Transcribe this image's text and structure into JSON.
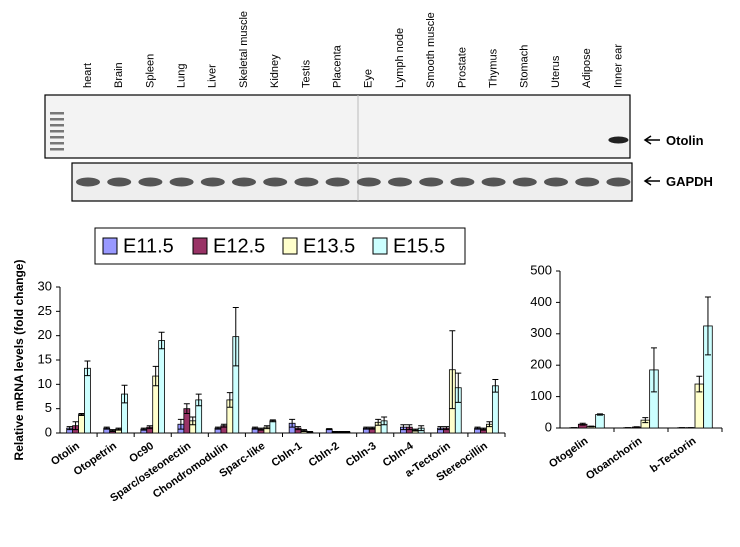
{
  "gel": {
    "lanes": [
      "heart",
      "Brain",
      "Spleen",
      "Lung",
      "Liver",
      "Skeletal muscle",
      "Kidney",
      "Testis",
      "Placenta",
      "Eye",
      "Lymph node",
      "Smooth muscle",
      "Prostate",
      "Thymus",
      "Stomach",
      "Uterus",
      "Adipose",
      "Inner ear"
    ],
    "bands": [
      "Otolin",
      "GAPDH"
    ]
  },
  "chart_data": [
    {
      "type": "bar",
      "y_label": "Relative mRNA levels (fold change)",
      "categories": [
        "Otolin",
        "Otopetrin",
        "Oc90",
        "Sparc/osteonectin",
        "Chondromodulin",
        "Sparc-like",
        "Cbln-1",
        "Cbln-2",
        "Cbln-3",
        "Cbln-4",
        "a-Tectorin",
        "Stereocillin"
      ],
      "series": [
        {
          "name": "E11.5",
          "color": "#9999ff",
          "values": [
            1,
            1,
            0.8,
            1.8,
            1,
            1,
            2,
            0.8,
            1,
            1.2,
            1,
            1
          ],
          "errors": [
            0.3,
            0.2,
            0.2,
            1,
            0.2,
            0.2,
            0.8,
            0.1,
            0.2,
            0.5,
            0.3,
            0.2
          ]
        },
        {
          "name": "E12.5",
          "color": "#993366",
          "values": [
            1.5,
            0.5,
            1.2,
            5,
            1.5,
            0.8,
            1,
            0.2,
            1,
            1.2,
            1,
            0.8
          ],
          "errors": [
            0.8,
            0.2,
            0.3,
            1,
            0.3,
            0.2,
            0.3,
            0.1,
            0.2,
            0.5,
            0.3,
            0.2
          ]
        },
        {
          "name": "E13.5",
          "color": "#ffffcc",
          "values": [
            3.8,
            0.8,
            11.7,
            2.5,
            6.8,
            1.2,
            0.5,
            0.2,
            2.2,
            0.6,
            13,
            1.8
          ],
          "errors": [
            0.2,
            0.2,
            2,
            0.8,
            1.5,
            0.3,
            0.2,
            0.1,
            0.6,
            0.2,
            8,
            0.5
          ]
        },
        {
          "name": "E15.5",
          "color": "#ccffff",
          "values": [
            13.3,
            8,
            19,
            6.8,
            19.8,
            2.5,
            0.2,
            0.2,
            2.5,
            1,
            9.3,
            9.7
          ],
          "errors": [
            1.5,
            1.8,
            1.7,
            1.2,
            6,
            0.2,
            0.1,
            0.1,
            0.8,
            0.5,
            3,
            1.3
          ]
        }
      ],
      "ylim": [
        0,
        30
      ],
      "yticks": [
        0,
        5,
        10,
        15,
        20,
        25,
        30
      ],
      "legend": "top"
    },
    {
      "type": "bar",
      "categories": [
        "Otogelin",
        "Otoanchorin",
        "b-Tectorin"
      ],
      "series": [
        {
          "color": "#9999ff",
          "values": [
            1,
            1,
            1
          ],
          "errors": [
            0,
            0,
            0
          ]
        },
        {
          "color": "#993366",
          "values": [
            12,
            3,
            1
          ],
          "errors": [
            3,
            1,
            0
          ]
        },
        {
          "color": "#ffffcc",
          "values": [
            5,
            25,
            140
          ],
          "errors": [
            1,
            8,
            25
          ]
        },
        {
          "color": "#ccffff",
          "values": [
            43,
            185,
            325
          ],
          "errors": [
            2,
            70,
            92
          ]
        }
      ],
      "ylim": [
        0,
        500
      ],
      "yticks": [
        0,
        100,
        200,
        300,
        400,
        500
      ]
    }
  ]
}
